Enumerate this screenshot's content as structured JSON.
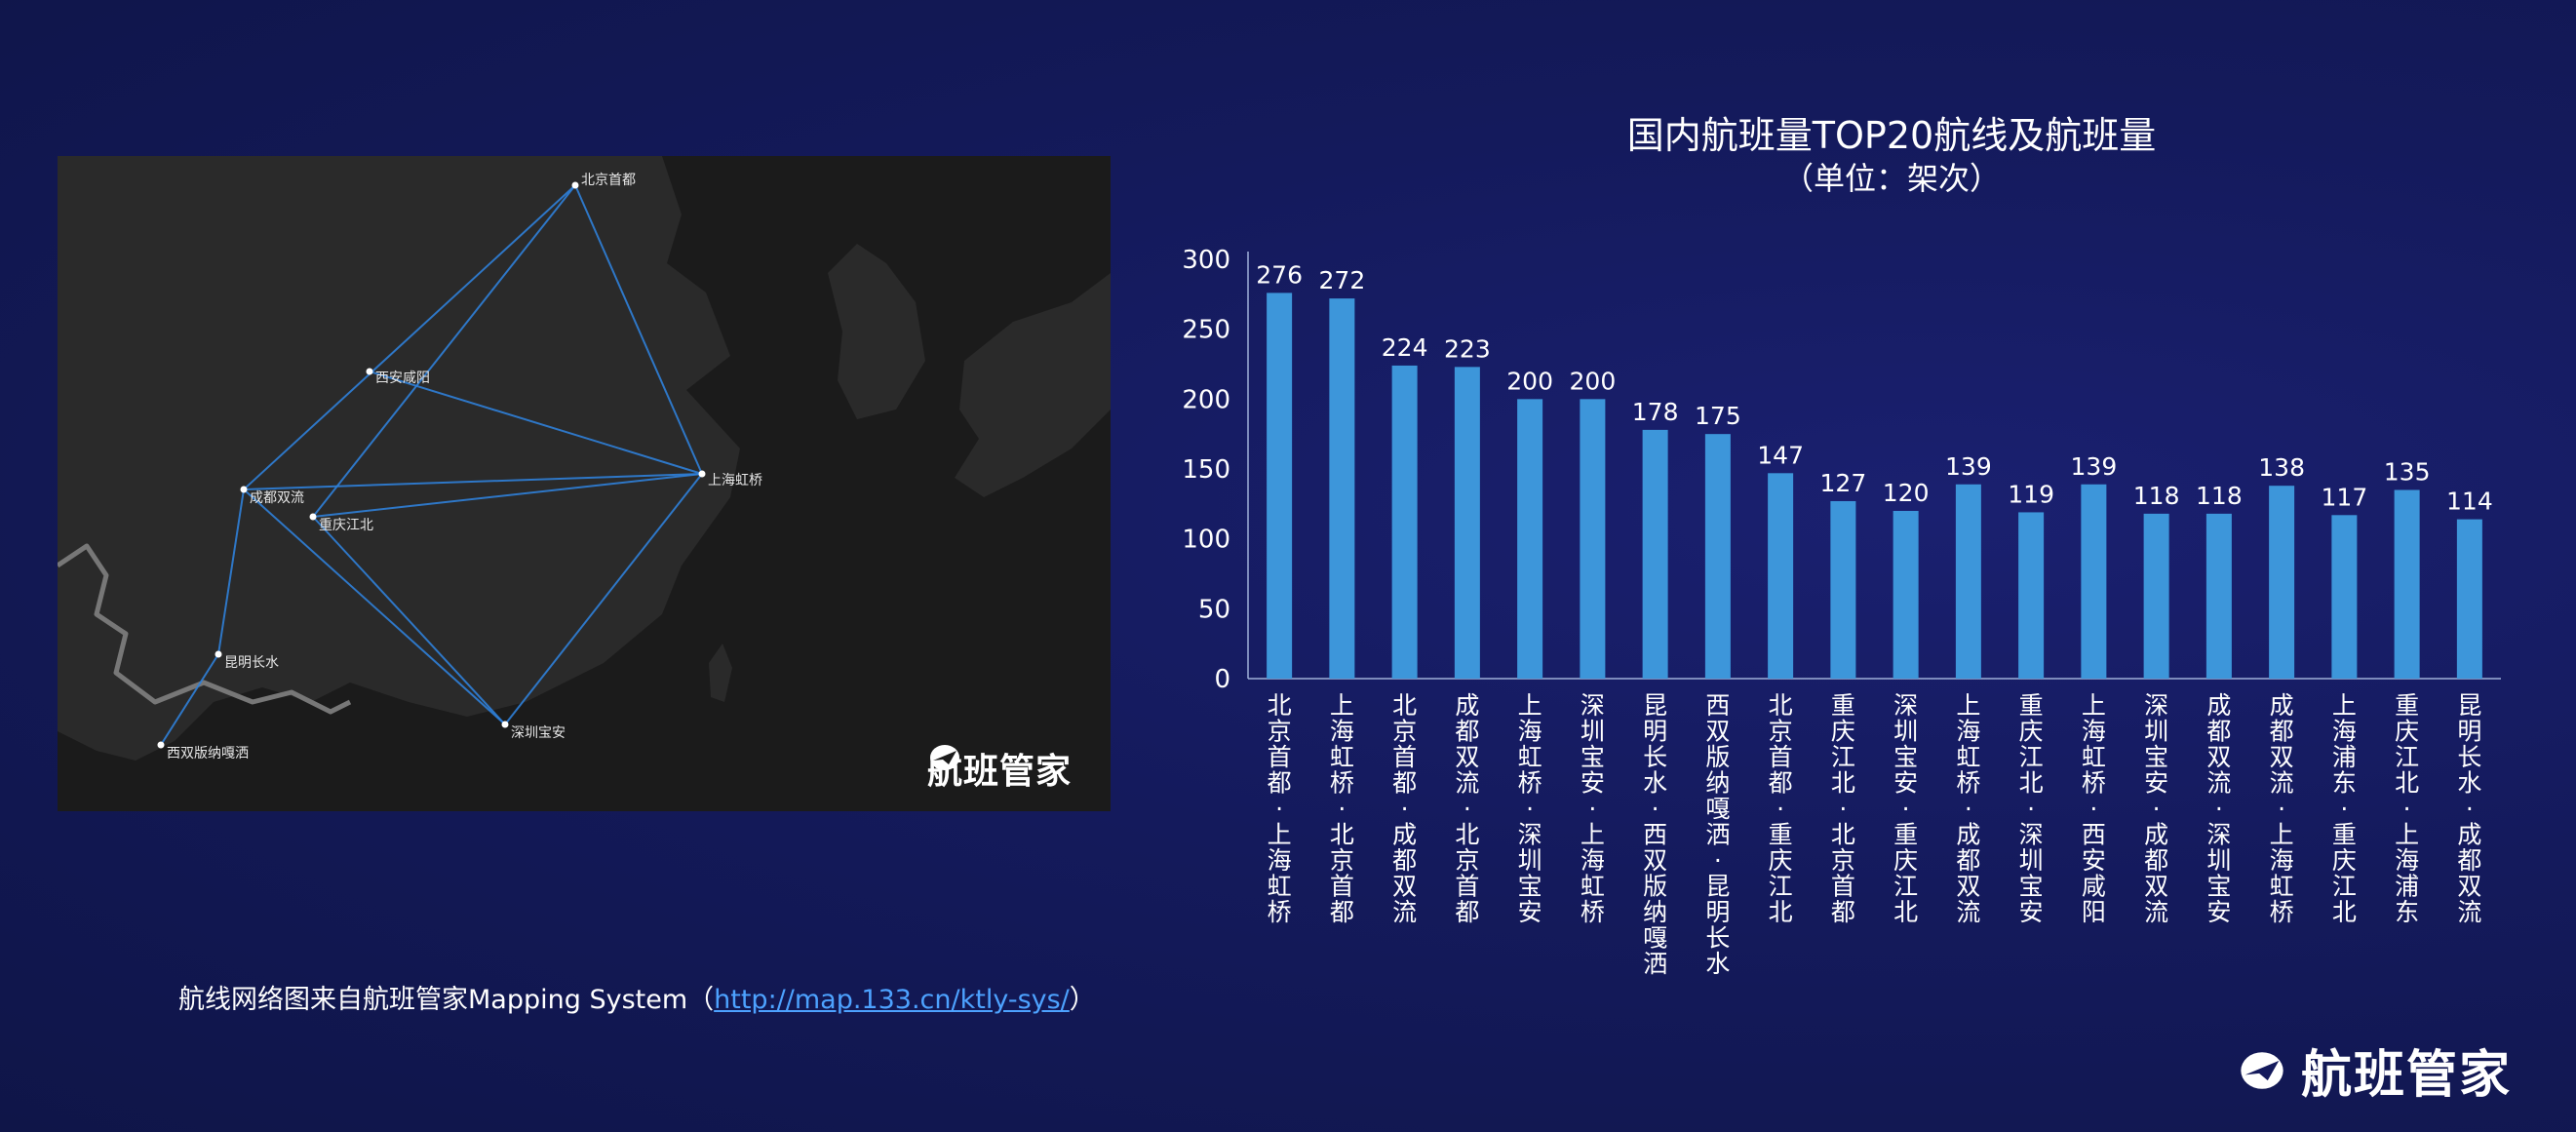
{
  "chart_data": {
    "type": "bar",
    "title": "国内航班量TOP20航线及航班量",
    "subtitle": "（单位：架次）",
    "categories": [
      "北京首都-上海虹桥",
      "上海虹桥-北京首都",
      "北京首都-成都双流",
      "成都双流-北京首都",
      "上海虹桥-深圳宝安",
      "深圳宝安-上海虹桥",
      "昆明长水-西双版纳嘎洒",
      "西双版纳嘎洒-昆明长水",
      "北京首都-重庆江北",
      "重庆江北-北京首都",
      "深圳宝安-重庆江北",
      "上海虹桥-成都双流",
      "重庆江北-深圳宝安",
      "上海虹桥-西安咸阳",
      "深圳宝安-成都双流",
      "成都双流-深圳宝安",
      "成都双流-上海虹桥",
      "上海浦东-重庆江北",
      "重庆江北-上海浦东",
      "昆明长水-成都双流"
    ],
    "values": [
      276,
      272,
      224,
      223,
      200,
      200,
      178,
      175,
      147,
      127,
      120,
      139,
      119,
      139,
      118,
      118,
      138,
      117,
      135,
      114
    ],
    "ylim": [
      0,
      300
    ],
    "yticks": [
      0,
      50,
      100,
      150,
      200,
      250,
      300
    ],
    "bar_color": "#3d96da",
    "xlabel": "",
    "ylabel": ""
  },
  "map": {
    "cities": [
      "北京首都",
      "西安咸阳",
      "成都双流",
      "重庆江北",
      "上海虹桥",
      "昆明长水",
      "西双版纳嘎洒",
      "深圳宝安"
    ],
    "logo_text": "航班管家"
  },
  "caption": {
    "text": "航线网络图来自航班管家Mapping System（",
    "link": "http://map.133.cn/ktly-sys/",
    "close": "）"
  },
  "brand": {
    "logo_text": "航班管家"
  }
}
